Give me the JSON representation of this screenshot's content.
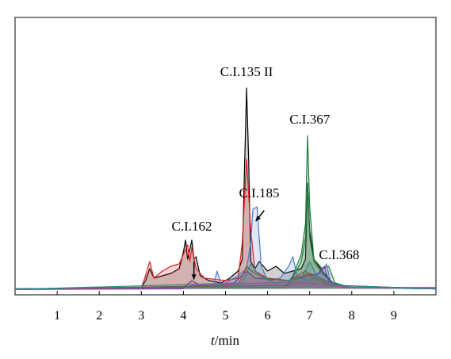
{
  "chart_data": {
    "type": "line",
    "title": "",
    "xlabel": {
      "italic": "t",
      "rest": "/min"
    },
    "ylabel": "",
    "xlim": [
      0,
      10
    ],
    "ylim": [
      0,
      10
    ],
    "x_ticks": [
      1,
      2,
      3,
      4,
      5,
      6,
      7,
      8,
      9
    ],
    "grid": false,
    "legend": "none",
    "colors": {
      "black": "#000000",
      "red": "#e02020",
      "green": "#1f7a3a",
      "blue": "#4a78c8",
      "purple": "#7a3c9a",
      "magenta": "#c040c0",
      "brown": "#8b5a2b",
      "teal": "#2a8a8a"
    },
    "annotations": [
      {
        "text": "C.I.135 II",
        "x": 5.5,
        "y": 9.0
      },
      {
        "text": "C.I.367",
        "x": 7.0,
        "y": 7.0
      },
      {
        "text": "C.I.185",
        "x": 5.8,
        "y": 3.9
      },
      {
        "text": "C.I.162",
        "x": 4.2,
        "y": 2.5
      },
      {
        "text": "C.I.368",
        "x": 7.7,
        "y": 1.3
      }
    ],
    "arrows": [
      {
        "from": [
          4.25,
          1.2
        ],
        "to": [
          4.25,
          0.45
        ]
      },
      {
        "from": [
          5.92,
          3.35
        ],
        "to": [
          5.72,
          2.9
        ]
      }
    ],
    "series": [
      {
        "color": "black",
        "points": [
          [
            0,
            0.05
          ],
          [
            3.0,
            0.1
          ],
          [
            3.1,
            0.4
          ],
          [
            3.2,
            0.9
          ],
          [
            3.3,
            0.5
          ],
          [
            3.5,
            0.6
          ],
          [
            3.7,
            0.7
          ],
          [
            3.9,
            0.9
          ],
          [
            4.0,
            1.6
          ],
          [
            4.05,
            2.1
          ],
          [
            4.1,
            1.3
          ],
          [
            4.2,
            2.1
          ],
          [
            4.25,
            1.3
          ],
          [
            4.3,
            1.4
          ],
          [
            4.4,
            0.6
          ],
          [
            4.6,
            0.4
          ],
          [
            4.9,
            0.3
          ],
          [
            5.1,
            0.5
          ],
          [
            5.3,
            0.8
          ],
          [
            5.4,
            1.3
          ],
          [
            5.45,
            5.0
          ],
          [
            5.5,
            8.5
          ],
          [
            5.55,
            5.5
          ],
          [
            5.6,
            1.2
          ],
          [
            5.7,
            0.9
          ],
          [
            5.8,
            1.2
          ],
          [
            6.0,
            0.8
          ],
          [
            6.2,
            1.0
          ],
          [
            6.4,
            0.7
          ],
          [
            6.6,
            0.8
          ],
          [
            6.8,
            0.9
          ],
          [
            6.9,
            1.3
          ],
          [
            6.95,
            4.5
          ],
          [
            7.0,
            2.5
          ],
          [
            7.1,
            1.3
          ],
          [
            7.3,
            0.8
          ],
          [
            7.4,
            0.6
          ],
          [
            7.6,
            0.2
          ],
          [
            8.0,
            0.1
          ],
          [
            10,
            0.1
          ]
        ]
      },
      {
        "color": "red",
        "points": [
          [
            0,
            0.05
          ],
          [
            3.0,
            0.1
          ],
          [
            3.1,
            0.6
          ],
          [
            3.2,
            1.2
          ],
          [
            3.3,
            0.5
          ],
          [
            3.5,
            0.8
          ],
          [
            3.7,
            1.0
          ],
          [
            3.9,
            1.1
          ],
          [
            4.0,
            1.5
          ],
          [
            4.1,
            1.9
          ],
          [
            4.15,
            1.2
          ],
          [
            4.2,
            1.8
          ],
          [
            4.3,
            0.9
          ],
          [
            4.5,
            0.5
          ],
          [
            5.0,
            0.4
          ],
          [
            5.3,
            0.5
          ],
          [
            5.4,
            2.0
          ],
          [
            5.5,
            5.5
          ],
          [
            5.6,
            2.5
          ],
          [
            5.7,
            0.8
          ],
          [
            6.0,
            0.5
          ],
          [
            6.5,
            0.4
          ],
          [
            7.0,
            0.7
          ],
          [
            7.5,
            0.3
          ],
          [
            8.0,
            0.1
          ],
          [
            10,
            0.08
          ]
        ]
      },
      {
        "color": "green",
        "points": [
          [
            0,
            0.05
          ],
          [
            6.4,
            0.1
          ],
          [
            6.6,
            0.6
          ],
          [
            6.8,
            1.5
          ],
          [
            6.9,
            2.8
          ],
          [
            6.95,
            6.5
          ],
          [
            7.0,
            3.5
          ],
          [
            7.1,
            1.3
          ],
          [
            7.3,
            0.9
          ],
          [
            7.45,
            1.0
          ],
          [
            7.6,
            0.3
          ],
          [
            8.0,
            0.1
          ],
          [
            10,
            0.05
          ]
        ]
      },
      {
        "color": "green",
        "points": [
          [
            0,
            0.05
          ],
          [
            6.5,
            0.2
          ],
          [
            6.8,
            1.2
          ],
          [
            6.9,
            2.2
          ],
          [
            6.95,
            4.5
          ],
          [
            7.0,
            2.2
          ],
          [
            7.1,
            1.2
          ],
          [
            7.3,
            0.7
          ],
          [
            7.6,
            0.2
          ],
          [
            10,
            0.05
          ]
        ]
      },
      {
        "color": "blue",
        "points": [
          [
            0,
            0.05
          ],
          [
            4.7,
            0.1
          ],
          [
            4.8,
            0.8
          ],
          [
            4.9,
            0.2
          ],
          [
            5.3,
            0.6
          ],
          [
            5.5,
            0.9
          ],
          [
            5.6,
            2.0
          ],
          [
            5.65,
            3.4
          ],
          [
            5.75,
            3.5
          ],
          [
            5.85,
            1.0
          ],
          [
            6.0,
            0.4
          ],
          [
            6.3,
            0.5
          ],
          [
            6.5,
            1.0
          ],
          [
            6.6,
            1.4
          ],
          [
            6.7,
            0.6
          ],
          [
            7.0,
            0.4
          ],
          [
            7.3,
            0.8
          ],
          [
            7.4,
            1.1
          ],
          [
            7.5,
            0.3
          ],
          [
            8.0,
            0.1
          ],
          [
            10,
            0.05
          ]
        ]
      },
      {
        "color": "purple",
        "points": [
          [
            0,
            0.02
          ],
          [
            4.0,
            0.1
          ],
          [
            4.2,
            0.4
          ],
          [
            4.4,
            0.2
          ],
          [
            5.2,
            0.3
          ],
          [
            5.5,
            0.8
          ],
          [
            5.7,
            0.5
          ],
          [
            6.5,
            0.4
          ],
          [
            7.2,
            0.7
          ],
          [
            7.35,
            1.0
          ],
          [
            7.45,
            0.4
          ],
          [
            7.8,
            0.1
          ],
          [
            9.0,
            0.1
          ],
          [
            10,
            0.1
          ]
        ]
      },
      {
        "color": "magenta",
        "points": [
          [
            0,
            0.02
          ],
          [
            4.0,
            0.05
          ],
          [
            4.2,
            0.2
          ],
          [
            5.0,
            0.25
          ],
          [
            6.0,
            0.3
          ],
          [
            7.0,
            0.3
          ],
          [
            7.5,
            0.2
          ],
          [
            8.0,
            0.1
          ],
          [
            9.0,
            0.1
          ],
          [
            10,
            0.1
          ]
        ]
      },
      {
        "color": "brown",
        "points": [
          [
            0,
            0.03
          ],
          [
            5.3,
            0.2
          ],
          [
            5.5,
            1.0
          ],
          [
            5.7,
            0.7
          ],
          [
            6.0,
            0.5
          ],
          [
            6.5,
            0.4
          ],
          [
            6.9,
            0.8
          ],
          [
            7.1,
            0.5
          ],
          [
            7.5,
            0.2
          ],
          [
            10,
            0.05
          ]
        ]
      },
      {
        "color": "teal",
        "points": [
          [
            0,
            0.03
          ],
          [
            5.4,
            0.3
          ],
          [
            5.6,
            1.1
          ],
          [
            5.8,
            0.6
          ],
          [
            6.2,
            0.3
          ],
          [
            6.8,
            0.5
          ],
          [
            7.0,
            1.2
          ],
          [
            7.2,
            0.5
          ],
          [
            7.6,
            0.2
          ],
          [
            10,
            0.05
          ]
        ]
      }
    ]
  }
}
